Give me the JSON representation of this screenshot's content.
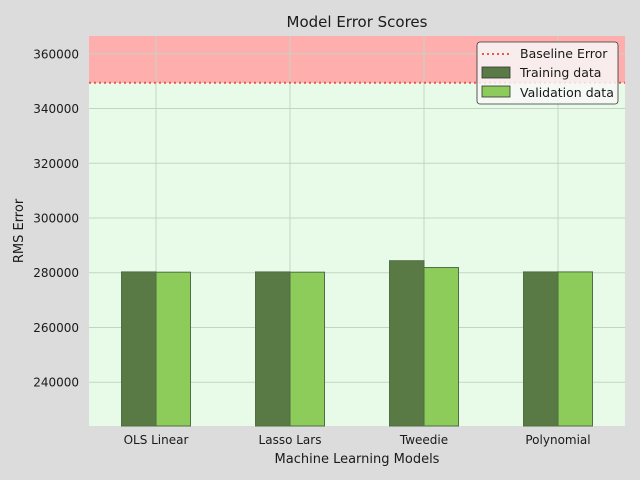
{
  "chart_data": {
    "type": "bar",
    "title": "Model Error Scores",
    "xlabel": "Machine Learning Models",
    "ylabel": "RMS Error",
    "categories": [
      "OLS Linear",
      "Lasso Lars",
      "Tweedie",
      "Polynomial"
    ],
    "series": [
      {
        "name": "Training data",
        "values": [
          280300,
          280300,
          284400,
          280300
        ],
        "color": "#5a7a45"
      },
      {
        "name": "Validation data",
        "values": [
          280200,
          280200,
          281900,
          280300
        ],
        "color": "#8dcb5a"
      }
    ],
    "baseline": {
      "name": "Baseline Error",
      "value": 349400,
      "color": "#e8584e"
    },
    "ylim": [
      224000,
      366500
    ],
    "yticks": [
      240000,
      260000,
      280000,
      300000,
      320000,
      340000,
      360000
    ],
    "ytick_labels": [
      "240000",
      "260000",
      "280000",
      "300000",
      "320000",
      "340000",
      "360000"
    ],
    "grid": true,
    "legend_position": "top-right",
    "colors": {
      "figure_bg": "#dcdcdc",
      "below_baseline_bg": "#e8fbe8",
      "above_baseline_bg": "#ffaeae",
      "grid": "#c4d4c4"
    }
  }
}
